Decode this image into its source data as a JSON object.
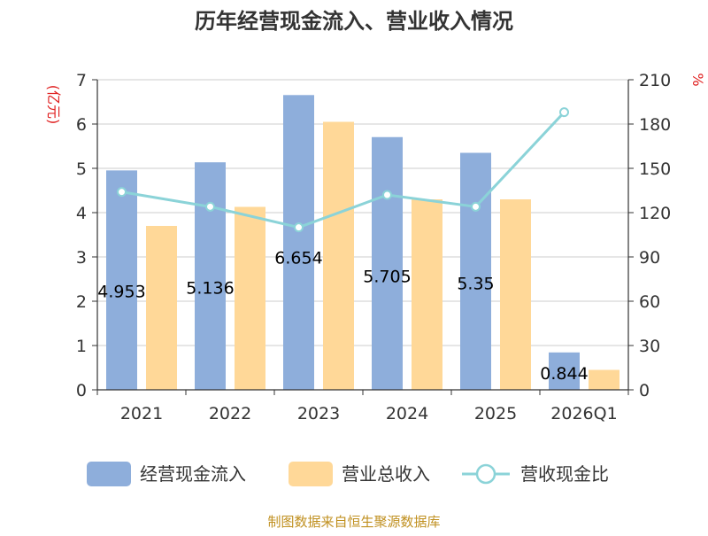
{
  "chart_data": {
    "type": "bar",
    "title": "历年经营现金流入、营业收入情况",
    "categories": [
      "2021",
      "2022",
      "2023",
      "2024",
      "2025",
      "2026Q1"
    ],
    "left_unit": "(亿元)",
    "right_unit": "%",
    "ylim_left": [
      0,
      7
    ],
    "yticks_left": [
      "0",
      "1",
      "2",
      "3",
      "4",
      "5",
      "6",
      "7"
    ],
    "ylim_right": [
      0,
      210
    ],
    "yticks_right": [
      "0",
      "30",
      "60",
      "90",
      "120",
      "150",
      "180",
      "210"
    ],
    "grid": true,
    "legend_position": "bottom",
    "series": [
      {
        "name": "经营现金流入",
        "type": "bar",
        "axis": "left",
        "color": "#8eaedb",
        "values": [
          4.953,
          5.136,
          6.654,
          5.705,
          5.35,
          0.844
        ],
        "labels": [
          "4.953",
          "5.136",
          "6.654",
          "5.705",
          "5.35",
          "0.844"
        ]
      },
      {
        "name": "营业总收入",
        "type": "bar",
        "axis": "left",
        "color": "#ffd898",
        "values": [
          3.7,
          4.13,
          6.05,
          4.3,
          4.3,
          0.45
        ]
      },
      {
        "name": "营收现金比",
        "type": "line",
        "axis": "right",
        "color": "#8bd3d8",
        "values": [
          134,
          124,
          110,
          132,
          124,
          188
        ]
      }
    ],
    "source": "制图数据来自恒生聚源数据库"
  }
}
